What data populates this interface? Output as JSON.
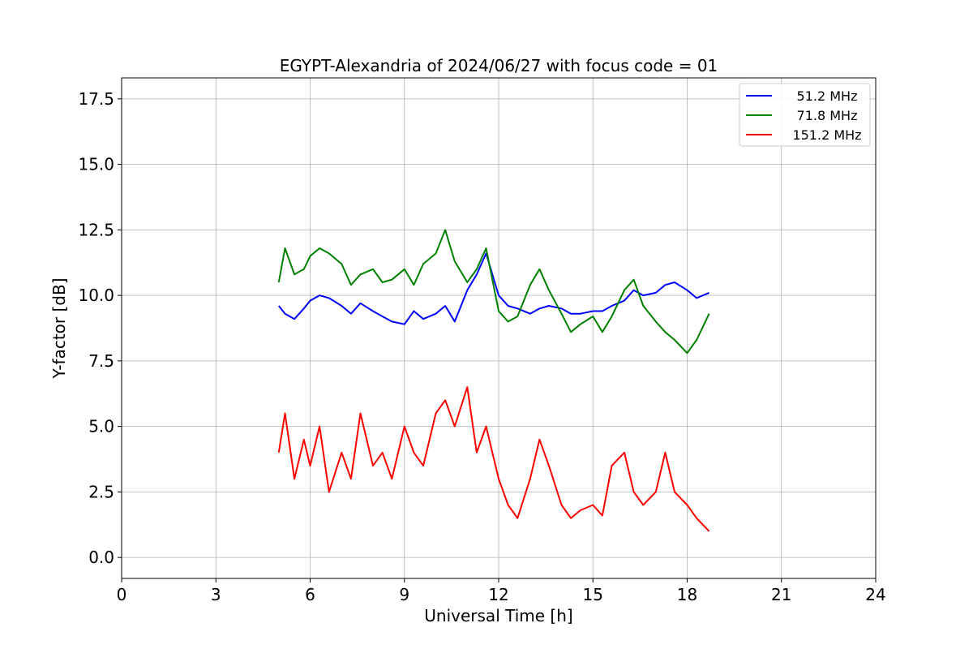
{
  "chart_data": {
    "type": "line",
    "title": "EGYPT-Alexandria of 2024/06/27 with focus code = 01",
    "xlabel": "Universal Time [h]",
    "ylabel": "Y-factor [dB]",
    "xlim": [
      0,
      24
    ],
    "ylim": [
      -0.8,
      18.3
    ],
    "xticks": [
      0,
      3,
      6,
      9,
      12,
      15,
      18,
      21,
      24
    ],
    "xtick_labels": [
      "0",
      "3",
      "6",
      "9",
      "12",
      "15",
      "18",
      "21",
      "24"
    ],
    "yticks": [
      0,
      2.5,
      5,
      7.5,
      10,
      12.5,
      15,
      17.5
    ],
    "ytick_labels": [
      "0.0",
      "2.5",
      "5.0",
      "7.5",
      "10.0",
      "12.5",
      "15.0",
      "17.5"
    ],
    "grid": true,
    "legend": "top-right",
    "series": [
      {
        "name": "51.2 MHz",
        "color": "#0000ff",
        "x": [
          5.0,
          5.2,
          5.5,
          5.8,
          6.0,
          6.3,
          6.6,
          7.0,
          7.3,
          7.6,
          8.0,
          8.3,
          8.6,
          9.0,
          9.3,
          9.6,
          10.0,
          10.3,
          10.6,
          11.0,
          11.3,
          11.6,
          12.0,
          12.3,
          12.6,
          13.0,
          13.3,
          13.6,
          14.0,
          14.3,
          14.6,
          15.0,
          15.3,
          15.6,
          16.0,
          16.3,
          16.6,
          17.0,
          17.3,
          17.6,
          18.0,
          18.3,
          18.7
        ],
        "y": [
          9.6,
          9.3,
          9.1,
          9.5,
          9.8,
          10.0,
          9.9,
          9.6,
          9.3,
          9.7,
          9.4,
          9.2,
          9.0,
          8.9,
          9.4,
          9.1,
          9.3,
          9.6,
          9.0,
          10.2,
          10.8,
          11.6,
          10.0,
          9.6,
          9.5,
          9.3,
          9.5,
          9.6,
          9.5,
          9.3,
          9.3,
          9.4,
          9.4,
          9.6,
          9.8,
          10.2,
          10.0,
          10.1,
          10.4,
          10.5,
          10.2,
          9.9,
          10.1
        ]
      },
      {
        "name": "71.8 MHz",
        "color": "#008000",
        "x": [
          5.0,
          5.2,
          5.5,
          5.8,
          6.0,
          6.3,
          6.6,
          7.0,
          7.3,
          7.6,
          8.0,
          8.3,
          8.6,
          9.0,
          9.3,
          9.6,
          10.0,
          10.3,
          10.6,
          11.0,
          11.3,
          11.6,
          12.0,
          12.3,
          12.6,
          13.0,
          13.3,
          13.6,
          14.0,
          14.3,
          14.6,
          15.0,
          15.3,
          15.6,
          16.0,
          16.3,
          16.6,
          17.0,
          17.3,
          17.6,
          18.0,
          18.3,
          18.7
        ],
        "y": [
          10.5,
          11.8,
          10.8,
          11.0,
          11.5,
          11.8,
          11.6,
          11.2,
          10.4,
          10.8,
          11.0,
          10.5,
          10.6,
          11.0,
          10.4,
          11.2,
          11.6,
          12.5,
          11.3,
          10.5,
          11.0,
          11.8,
          9.4,
          9.0,
          9.2,
          10.4,
          11.0,
          10.2,
          9.3,
          8.6,
          8.9,
          9.2,
          8.6,
          9.2,
          10.2,
          10.6,
          9.6,
          9.0,
          8.6,
          8.3,
          7.8,
          8.3,
          9.3
        ]
      },
      {
        "name": "151.2 MHz",
        "color": "#ff0000",
        "x": [
          5.0,
          5.2,
          5.5,
          5.8,
          6.0,
          6.3,
          6.6,
          7.0,
          7.3,
          7.6,
          8.0,
          8.3,
          8.6,
          9.0,
          9.3,
          9.6,
          10.0,
          10.3,
          10.6,
          11.0,
          11.3,
          11.6,
          12.0,
          12.3,
          12.6,
          13.0,
          13.3,
          13.6,
          14.0,
          14.3,
          14.6,
          15.0,
          15.3,
          15.6,
          16.0,
          16.3,
          16.6,
          17.0,
          17.3,
          17.6,
          18.0,
          18.3,
          18.7
        ],
        "y": [
          4.0,
          5.5,
          3.0,
          4.5,
          3.5,
          5.0,
          2.5,
          4.0,
          3.0,
          5.5,
          3.5,
          4.0,
          3.0,
          5.0,
          4.0,
          3.5,
          5.5,
          6.0,
          5.0,
          6.5,
          4.0,
          5.0,
          3.0,
          2.0,
          1.5,
          3.0,
          4.5,
          3.5,
          2.0,
          1.5,
          1.8,
          2.0,
          1.6,
          3.5,
          4.0,
          2.5,
          2.0,
          2.5,
          4.0,
          2.5,
          2.0,
          1.5,
          1.0
        ]
      }
    ]
  }
}
